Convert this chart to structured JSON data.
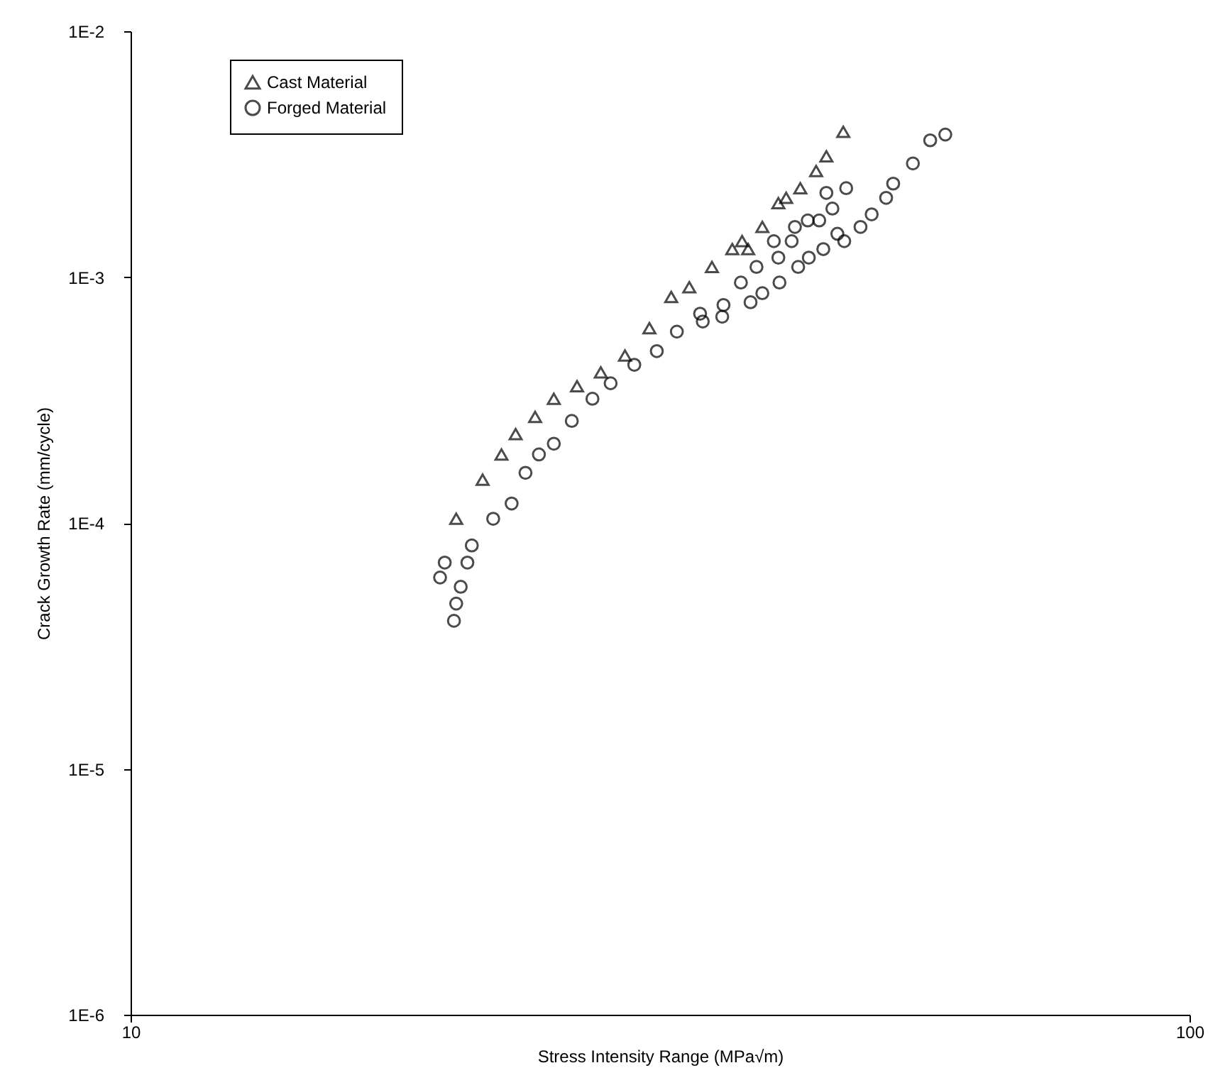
{
  "chart_data": {
    "type": "scatter",
    "xlabel": "Stress Intensity Range (MPa√m)",
    "ylabel": "Crack Growth Rate (mm/cycle)",
    "log": "xy",
    "xlim": [
      10,
      100
    ],
    "xticks": [
      10,
      100
    ],
    "ylim": [
      1e-06,
      0.01
    ],
    "yticks": [
      {
        "value": 1e-06,
        "label": "1E-6"
      },
      {
        "value": 1e-05,
        "label": "1E-5"
      },
      {
        "value": 0.0001,
        "label": "1E-4"
      },
      {
        "value": 0.001,
        "label": "1E-3"
      },
      {
        "value": 0.01,
        "label": "1E-2"
      }
    ],
    "grid": false,
    "legend": "top left",
    "series": [
      {
        "name": "Cast Material",
        "color": "#000000",
        "marker": "triangle",
        "x": [
          20.3,
          21.5,
          22.4,
          23.1,
          24.1,
          25.1,
          26.4,
          27.8,
          29.3,
          30.9,
          32.4,
          33.7,
          35.4,
          37.0,
          38.3,
          37.8,
          39.5,
          40.9,
          41.6,
          42.9,
          44.4,
          45.4,
          47.1
        ],
        "values": [
          0.000104,
          0.00015,
          0.00019,
          0.00023,
          0.00027,
          0.00032,
          0.00036,
          0.00041,
          0.00048,
          0.00062,
          0.00083,
          0.00091,
          0.0011,
          0.0013,
          0.0013,
          0.0014,
          0.0016,
          0.002,
          0.0021,
          0.0023,
          0.0027,
          0.0031,
          0.0039
        ]
      },
      {
        "name": "Forged Material",
        "color": "#000000",
        "marker": "circle",
        "x": [
          19.6,
          19.8,
          20.2,
          20.3,
          20.5,
          20.8,
          21.0,
          22.0,
          22.9,
          23.6,
          24.3,
          25.1,
          26.1,
          27.3,
          28.4,
          29.9,
          31.4,
          32.8,
          34.5,
          34.7,
          36.2,
          38.5,
          39.5,
          41.0,
          42.7,
          43.7,
          45.1,
          46.5,
          47.2,
          48.9,
          50.1,
          51.7,
          52.5,
          54.8,
          56.9,
          58.8,
          36.3,
          37.7,
          39.0,
          40.9,
          40.5,
          42.1,
          42.4,
          43.6,
          44.7,
          46.0,
          45.4,
          47.4
        ],
        "values": [
          6e-05,
          6.9e-05,
          4e-05,
          4.7e-05,
          5.5e-05,
          6.9e-05,
          8.1e-05,
          0.000104,
          0.00012,
          0.00016,
          0.00019,
          0.00021,
          0.00026,
          0.00032,
          0.00037,
          0.00044,
          0.0005,
          0.0006,
          0.00071,
          0.00066,
          0.00069,
          0.00079,
          0.00086,
          0.00095,
          0.0011,
          0.0012,
          0.0013,
          0.0015,
          0.0014,
          0.0016,
          0.0018,
          0.0021,
          0.0024,
          0.0029,
          0.0036,
          0.0038,
          0.00077,
          0.00095,
          0.0011,
          0.0012,
          0.0014,
          0.0014,
          0.0016,
          0.0017,
          0.0017,
          0.0019,
          0.0022,
          0.0023
        ]
      }
    ]
  }
}
